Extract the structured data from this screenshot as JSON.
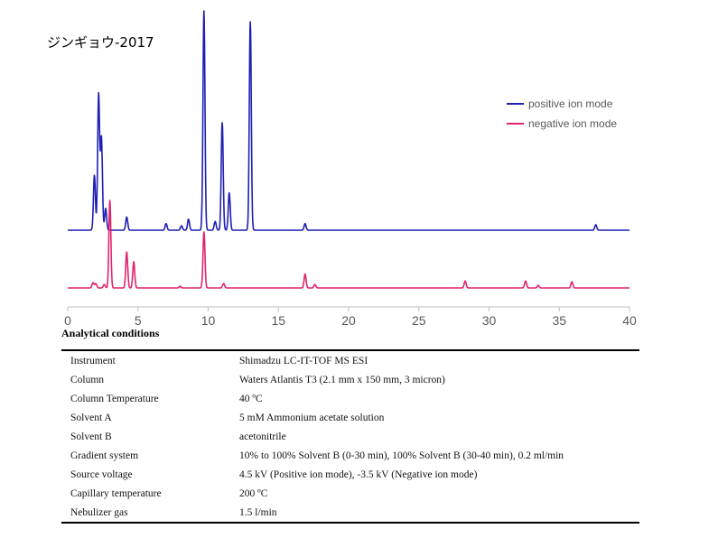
{
  "chart_data": {
    "type": "line",
    "title": "ジンギョウ-2017",
    "xlabel": "",
    "ylabel": "",
    "xlim": [
      0,
      40
    ],
    "x_ticks": [
      0,
      5,
      10,
      15,
      20,
      25,
      30,
      35,
      40
    ],
    "grid": false,
    "legend_position": "top-right",
    "series": [
      {
        "name": "positive ion mode",
        "color": "#1F1FB4",
        "baseline": 0,
        "peaks": [
          [
            1.9,
            0.25
          ],
          [
            2.2,
            0.62
          ],
          [
            2.4,
            0.42
          ],
          [
            2.7,
            0.1
          ],
          [
            4.2,
            0.06
          ],
          [
            7.0,
            0.03
          ],
          [
            8.1,
            0.02
          ],
          [
            8.6,
            0.05
          ],
          [
            9.7,
            1.0
          ],
          [
            10.5,
            0.04
          ],
          [
            11.0,
            0.49
          ],
          [
            11.5,
            0.17
          ],
          [
            13.0,
            0.95
          ],
          [
            16.9,
            0.03
          ],
          [
            37.6,
            0.025
          ]
        ]
      },
      {
        "name": "negative ion mode",
        "color": "#E0246E",
        "baseline": 0,
        "peaks": [
          [
            1.8,
            0.06
          ],
          [
            2.0,
            0.05
          ],
          [
            2.6,
            0.04
          ],
          [
            3.0,
            1.0
          ],
          [
            4.2,
            0.41
          ],
          [
            4.7,
            0.3
          ],
          [
            8.0,
            0.02
          ],
          [
            9.7,
            0.64
          ],
          [
            11.1,
            0.05
          ],
          [
            16.9,
            0.16
          ],
          [
            17.6,
            0.04
          ],
          [
            28.3,
            0.08
          ],
          [
            32.6,
            0.08
          ],
          [
            33.5,
            0.03
          ],
          [
            35.9,
            0.07
          ]
        ]
      }
    ]
  },
  "conditions": {
    "heading": "Analytical conditions",
    "rows": [
      {
        "label": "Instrument",
        "value": "Shimadzu LC-IT-TOF MS ESI"
      },
      {
        "label": "Column",
        "value": "Waters Atlantis T3 (2.1 mm x 150 mm, 3 micron)"
      },
      {
        "label": "Column Temperature",
        "value": "40 ºC"
      },
      {
        "label": "Solvent A",
        "value": "5 mM Ammonium acetate solution"
      },
      {
        "label": "Solvent B",
        "value": "acetonitrile"
      },
      {
        "label": "Gradient system",
        "value": "10% to 100% Solvent B (0-30 min), 100% Solvent B (30-40 min), 0.2 ml/min"
      },
      {
        "label": "Source voltage",
        "value": "4.5 kV (Positive ion mode), -3.5 kV (Negative ion mode)"
      },
      {
        "label": "Capillary temperature",
        "value": "200 ºC"
      },
      {
        "label": "Nebulizer gas",
        "value": "1.5 l/min"
      }
    ]
  }
}
